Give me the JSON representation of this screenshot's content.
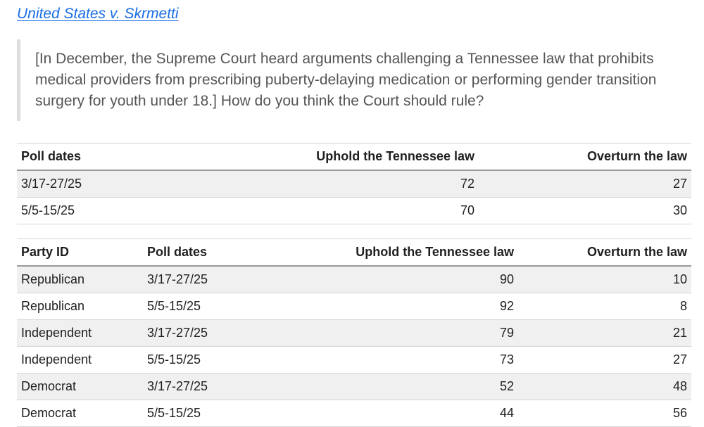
{
  "case_link": "United States v. Skrmetti",
  "question": "[In December, the Supreme Court heard arguments challenging a Tennessee law that prohibits medical providers from prescribing puberty-delaying medication or performing gender transition surgery for youth under 18.] How do you think the Court should rule?",
  "table1": {
    "headers": [
      "Poll dates",
      "Uphold the Tennessee law",
      "Overturn the law"
    ],
    "rows": [
      [
        "3/17-27/25",
        "72",
        "27"
      ],
      [
        "5/5-15/25",
        "70",
        "30"
      ]
    ]
  },
  "table2": {
    "headers": [
      "Party ID",
      "Poll dates",
      "Uphold the Tennessee law",
      "Overturn the law"
    ],
    "rows": [
      [
        "Republican",
        "3/17-27/25",
        "90",
        "10"
      ],
      [
        "Republican",
        "5/5-15/25",
        "92",
        "8"
      ],
      [
        "Independent",
        "3/17-27/25",
        "79",
        "21"
      ],
      [
        "Independent",
        "5/5-15/25",
        "73",
        "27"
      ],
      [
        "Democrat",
        "3/17-27/25",
        "52",
        "48"
      ],
      [
        "Democrat",
        "5/5-15/25",
        "44",
        "56"
      ]
    ]
  }
}
